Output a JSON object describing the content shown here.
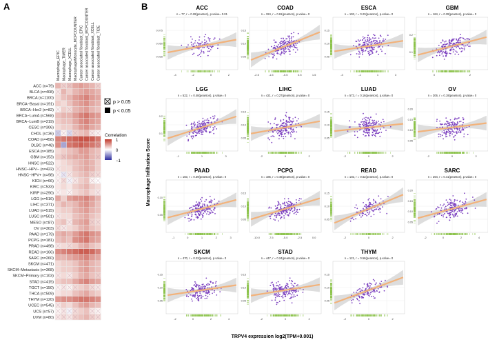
{
  "panel_a_label": "A",
  "panel_b_label": "B",
  "chart_data": [
    {
      "type": "heatmap",
      "panel": "A",
      "columns": [
        "Macrophage_EPIC",
        "Macrophage_TIMER",
        "Macrophage_XCELL",
        "Macrophage/Monocyte_MCPCOUNTER",
        "Cancer associated fibroblast_EPIC",
        "Cancer associated fibroblast_MCPCOUNTER",
        "Cancer associated fibroblast_XCELL",
        "Cancer associated fibroblast_TIDE"
      ],
      "rows": [
        "ACC (n=79)",
        "BLCA (n=408)",
        "BRCA (n=1100)",
        "BRCA−Basal (n=191)",
        "BRCA−Her2 (n=82)",
        "BRCA−LumA (n=568)",
        "BRCA−LumB (n=219)",
        "CESC (n=306)",
        "CHOL (n=36)",
        "COAD (n=458)",
        "DLBC (n=48)",
        "ESCA (n=185)",
        "GBM (n=153)",
        "HNSC (n=522)",
        "HNSC−HPV− (n=422)",
        "HNSC−HPV+ (n=98)",
        "KICH (n=66)",
        "KIRC (n=533)",
        "KIRP (n=290)",
        "LGG (n=516)",
        "LIHC (n=371)",
        "LUAD (n=515)",
        "LUSC (n=501)",
        "MESO (n=87)",
        "OV (n=303)",
        "PAAD (n=179)",
        "PCPG (n=181)",
        "PRAD (n=498)",
        "READ (n=166)",
        "SARC (n=260)",
        "SKCM (n=471)",
        "SKCM−Metastasis (n=368)",
        "SKCM−Primary (n=103)",
        "STAD (n=415)",
        "TGCT (n=150)",
        "THCA (n=509)",
        "THYM (n=120)",
        "UCEC (n=545)",
        "UCS (n=57)",
        "UVM (n=80)"
      ],
      "legend_p_high": "p > 0.05",
      "legend_p_low": "p < 0.05",
      "legend_title": "Correlation",
      "legend_ticks": [
        "1",
        "0",
        "−1"
      ],
      "scale_colors": {
        "high": "#c0392b",
        "mid": "#ffffff",
        "low": "#2c2c9e"
      },
      "values": [
        [
          0.3,
          0.2,
          0.25,
          0.35,
          0.4,
          0.35,
          0.3,
          0.2
        ],
        [
          0.1,
          0.3,
          0.2,
          0.3,
          0.35,
          0.4,
          0.35,
          0.3
        ],
        [
          0.15,
          0.25,
          0.3,
          0.4,
          0.45,
          0.5,
          0.4,
          0.35
        ],
        [
          0.2,
          0.15,
          0.25,
          0.35,
          0.4,
          0.45,
          0.35,
          0.3
        ],
        [
          0.05,
          0.2,
          0.15,
          0.3,
          0.35,
          0.4,
          0.3,
          0.25
        ],
        [
          0.25,
          0.3,
          0.3,
          0.4,
          0.5,
          0.55,
          0.45,
          0.4
        ],
        [
          0.2,
          0.25,
          0.25,
          0.35,
          0.45,
          0.5,
          0.4,
          0.35
        ],
        [
          0.15,
          0.2,
          0.2,
          0.3,
          0.4,
          0.45,
          0.35,
          0.3
        ],
        [
          -0.2,
          0.05,
          -0.15,
          0.2,
          0.25,
          0.3,
          0.1,
          0.05
        ],
        [
          0.5,
          0.55,
          0.6,
          0.65,
          0.7,
          0.7,
          0.65,
          0.55
        ],
        [
          0.45,
          -0.35,
          0.55,
          0.6,
          0.65,
          0.6,
          0.55,
          0.5
        ],
        [
          0.15,
          0.2,
          0.25,
          0.3,
          0.4,
          0.4,
          0.3,
          0.25
        ],
        [
          0.2,
          0.25,
          0.3,
          0.35,
          0.35,
          0.4,
          0.3,
          0.25
        ],
        [
          0.1,
          0.15,
          0.2,
          0.25,
          0.3,
          0.35,
          0.3,
          0.2
        ],
        [
          0.1,
          0.15,
          0.15,
          0.25,
          0.3,
          0.35,
          0.3,
          0.2
        ],
        [
          0.05,
          -0.1,
          0.1,
          0.2,
          0.25,
          0.3,
          0.2,
          0.15
        ],
        [
          0.05,
          0.15,
          -0.05,
          0.1,
          0.2,
          0.25,
          0.05,
          0.0
        ],
        [
          0.1,
          0.15,
          0.1,
          0.2,
          0.25,
          0.3,
          0.2,
          0.15
        ],
        [
          0.05,
          0.1,
          0.05,
          0.15,
          0.2,
          0.25,
          0.15,
          0.1
        ],
        [
          0.35,
          0.2,
          0.4,
          0.45,
          0.45,
          0.5,
          0.4,
          0.3
        ],
        [
          0.2,
          0.3,
          0.25,
          0.3,
          0.4,
          0.45,
          0.35,
          0.25
        ],
        [
          0.15,
          0.2,
          0.2,
          0.3,
          0.35,
          0.4,
          0.3,
          0.25
        ],
        [
          0.1,
          0.15,
          0.15,
          0.25,
          0.3,
          0.35,
          0.25,
          0.2
        ],
        [
          0.2,
          0.25,
          0.1,
          0.3,
          0.35,
          0.4,
          0.2,
          0.15
        ],
        [
          0.15,
          0.1,
          0.15,
          0.2,
          0.3,
          0.35,
          0.25,
          0.2
        ],
        [
          0.3,
          0.35,
          0.3,
          0.4,
          0.5,
          0.55,
          0.45,
          0.4
        ],
        [
          0.25,
          0.3,
          0.25,
          0.45,
          0.5,
          0.55,
          0.4,
          0.35
        ],
        [
          0.1,
          0.15,
          0.15,
          0.2,
          0.3,
          0.35,
          0.25,
          0.2
        ],
        [
          0.45,
          0.5,
          0.55,
          0.6,
          0.65,
          0.65,
          0.6,
          0.5
        ],
        [
          0.3,
          0.3,
          0.35,
          0.4,
          0.45,
          0.5,
          0.4,
          0.35
        ],
        [
          0.15,
          0.2,
          0.2,
          0.25,
          0.35,
          0.4,
          0.3,
          0.25
        ],
        [
          0.15,
          0.2,
          0.2,
          0.25,
          0.35,
          0.4,
          0.3,
          0.25
        ],
        [
          0.1,
          0.15,
          0.1,
          0.2,
          0.3,
          0.35,
          0.25,
          0.2
        ],
        [
          0.2,
          0.25,
          0.25,
          0.35,
          0.45,
          0.5,
          0.4,
          0.35
        ],
        [
          0.05,
          0.1,
          0.05,
          0.15,
          0.2,
          0.25,
          0.15,
          0.1
        ],
        [
          0.1,
          0.15,
          0.15,
          0.25,
          0.3,
          0.35,
          0.25,
          0.2
        ],
        [
          0.4,
          0.45,
          0.45,
          0.5,
          0.55,
          0.55,
          0.5,
          0.45
        ],
        [
          0.1,
          0.2,
          0.15,
          0.25,
          0.35,
          0.4,
          0.3,
          0.25
        ],
        [
          0.05,
          0.1,
          -0.05,
          0.15,
          0.2,
          0.25,
          0.1,
          0.05
        ],
        [
          0.1,
          0.15,
          0.1,
          0.2,
          0.25,
          0.3,
          0.2,
          0.15
        ]
      ],
      "not_significant": [
        [
          0,
          1
        ],
        [
          0,
          2
        ],
        [
          0,
          7
        ],
        [
          1,
          0
        ],
        [
          4,
          0
        ],
        [
          4,
          2
        ],
        [
          8,
          0
        ],
        [
          8,
          1
        ],
        [
          8,
          2
        ],
        [
          8,
          3
        ],
        [
          8,
          6
        ],
        [
          8,
          7
        ],
        [
          10,
          1
        ],
        [
          10,
          7
        ],
        [
          12,
          1
        ],
        [
          12,
          7
        ],
        [
          14,
          0
        ],
        [
          15,
          0
        ],
        [
          15,
          1
        ],
        [
          15,
          2
        ],
        [
          15,
          6
        ],
        [
          15,
          7
        ],
        [
          16,
          0
        ],
        [
          16,
          1
        ],
        [
          16,
          2
        ],
        [
          16,
          3
        ],
        [
          16,
          6
        ],
        [
          16,
          7
        ],
        [
          18,
          0
        ],
        [
          18,
          2
        ],
        [
          18,
          7
        ],
        [
          22,
          0
        ],
        [
          23,
          2
        ],
        [
          23,
          6
        ],
        [
          23,
          7
        ],
        [
          24,
          0
        ],
        [
          24,
          1
        ],
        [
          27,
          0
        ],
        [
          27,
          2
        ],
        [
          32,
          0
        ],
        [
          32,
          2
        ],
        [
          32,
          7
        ],
        [
          34,
          0
        ],
        [
          34,
          1
        ],
        [
          34,
          2
        ],
        [
          34,
          3
        ],
        [
          34,
          6
        ],
        [
          34,
          7
        ],
        [
          37,
          0
        ],
        [
          38,
          0
        ],
        [
          38,
          1
        ],
        [
          38,
          2
        ],
        [
          38,
          3
        ],
        [
          38,
          6
        ],
        [
          38,
          7
        ],
        [
          39,
          0
        ],
        [
          39,
          1
        ],
        [
          39,
          2
        ],
        [
          39,
          3
        ],
        [
          39,
          6
        ],
        [
          39,
          7
        ]
      ]
    },
    {
      "type": "scatter",
      "panel": "B",
      "ylabel": "Macrophage Infiltration Score",
      "xlabel": "TRPV4 expression log2(TPM+0.001)",
      "colors": {
        "point": "#7b3fbf",
        "line": "#f2b27a",
        "band": "#cfcfcf",
        "rug": "#8bc34a"
      },
      "panels": [
        {
          "title": "ACC",
          "stats": "n = 77, r = 0.28(pearson), p.value= 0.01",
          "n": 77,
          "r": 0.28,
          "xlim": [
            -4,
            4
          ],
          "ylim": [
            0,
            0.1
          ],
          "xticks": [
            "-4",
            "-2",
            "0",
            "2"
          ],
          "yticks": [
            "0.025",
            "0.050",
            "0.075"
          ]
        },
        {
          "title": "COAD",
          "stats": "n = 324, r = 0.61(pearson), p.value= 0",
          "n": 324,
          "r": 0.61,
          "xlim": [
            -3,
            2
          ],
          "ylim": [
            0,
            0.2
          ],
          "xticks": [
            "-2.5",
            "-1.5",
            "-0.5",
            "0.5",
            "1.5"
          ],
          "yticks": [
            "0.05",
            "0.10",
            "0.15"
          ]
        },
        {
          "title": "ESCA",
          "stats": "n = 193, r = 0.23(pearson), p.value= 0",
          "n": 193,
          "r": 0.23,
          "xlim": [
            -4,
            4
          ],
          "ylim": [
            0,
            0.2
          ],
          "xticks": [
            "-3",
            "-1",
            "1",
            "3"
          ],
          "yticks": [
            "0.05",
            "0.10",
            "0.15"
          ]
        },
        {
          "title": "GBM",
          "stats": "n = 164, r = 0.39(pearson), p.value= 0",
          "n": 164,
          "r": 0.39,
          "xlim": [
            -2,
            4
          ],
          "ylim": [
            0,
            0.3
          ],
          "xticks": [
            "0",
            "2"
          ],
          "yticks": [
            "0.1",
            "0.2"
          ]
        },
        {
          "title": "LGG",
          "stats": "n = 522, r = 0.48(pearson), p.value= 0",
          "n": 522,
          "r": 0.48,
          "xlim": [
            -3,
            4
          ],
          "ylim": [
            0,
            0.3
          ],
          "xticks": [
            "-1",
            "1",
            "3"
          ],
          "yticks": [
            "0.1",
            "0.2"
          ]
        },
        {
          "title": "LIHC",
          "stats": "n = 421, r = 0.27(pearson), p.value= 0",
          "n": 421,
          "r": 0.27,
          "xlim": [
            -3,
            3
          ],
          "ylim": [
            0,
            0.2
          ],
          "xticks": [
            "-2",
            "0",
            "2"
          ],
          "yticks": [
            "0.05",
            "0.10",
            "0.15"
          ]
        },
        {
          "title": "LUAD",
          "stats": "n = 573, r = 0.16(pearson), p.value= 0",
          "n": 573,
          "r": 0.16,
          "xlim": [
            -3,
            4
          ],
          "ylim": [
            0,
            0.2
          ],
          "xticks": [
            "-2",
            "0",
            "2"
          ],
          "yticks": [
            "0.05",
            "0.10",
            "0.15"
          ]
        },
        {
          "title": "OV",
          "stats": "n = 306, r = 0.19(pearson), p.value= 0",
          "n": 306,
          "r": 0.19,
          "xlim": [
            -4,
            4
          ],
          "ylim": [
            0,
            0.25
          ],
          "xticks": [
            "-2",
            "0",
            "2"
          ],
          "yticks": [
            "0.05",
            "0.10",
            "0.15",
            "0.20"
          ]
        },
        {
          "title": "PAAD",
          "stats": "n = 183, r = 0.39(pearson), p.value= 0",
          "n": 183,
          "r": 0.39,
          "xlim": [
            -2,
            4
          ],
          "ylim": [
            0,
            0.15
          ],
          "xticks": [
            "-1",
            "0",
            "1",
            "2",
            "3"
          ],
          "yticks": [
            "0.05",
            "0.10"
          ]
        },
        {
          "title": "PCPG",
          "stats": "n = 185, r = 0.46(pearson), p.value= 0",
          "n": 185,
          "r": 0.46,
          "xlim": [
            -10,
            5
          ],
          "ylim": [
            0,
            0.2
          ],
          "xticks": [
            "-10.0",
            "-7.5",
            "-5.0",
            "-2.5",
            "0.0"
          ],
          "yticks": [
            "0.05",
            "0.10",
            "0.15"
          ]
        },
        {
          "title": "READ",
          "stats": "n = 102, r = 0.62(pearson), p.value= 0",
          "n": 102,
          "r": 0.62,
          "xlim": [
            -3,
            3
          ],
          "ylim": [
            0,
            0.2
          ],
          "xticks": [
            "-2",
            "0",
            "2"
          ],
          "yticks": [
            "0.05",
            "0.10",
            "0.15"
          ]
        },
        {
          "title": "SARC",
          "stats": "n = 264, r = 0.41(pearson), p.value= 0",
          "n": 264,
          "r": 0.41,
          "xlim": [
            -3,
            5
          ],
          "ylim": [
            0,
            0.25
          ],
          "xticks": [
            "-2",
            "0",
            "2",
            "4"
          ],
          "yticks": [
            "0.05",
            "0.10",
            "0.15",
            "0.20"
          ]
        },
        {
          "title": "SKCM",
          "stats": "n = 470, r = 0.22(pearson), p.value= 0",
          "n": 470,
          "r": 0.22,
          "xlim": [
            -3,
            6
          ],
          "ylim": [
            0,
            0.2
          ],
          "xticks": [
            "-2",
            "0",
            "2",
            "4"
          ],
          "yticks": [
            "0.05",
            "0.10",
            "0.15"
          ]
        },
        {
          "title": "STAD",
          "stats": "n = 447, r = 0.24(pearson), p.value= 0",
          "n": 447,
          "r": 0.24,
          "xlim": [
            -3,
            3
          ],
          "ylim": [
            0,
            0.2
          ],
          "xticks": [
            "-2",
            "0",
            "2"
          ],
          "yticks": [
            "0.05",
            "0.10",
            "0.15"
          ]
        },
        {
          "title": "THYM",
          "stats": "n = 121, r = 0.56(pearson), p.value= 0",
          "n": 121,
          "r": 0.56,
          "xlim": [
            -3,
            4
          ],
          "ylim": [
            0,
            0.2
          ],
          "xticks": [
            "-2",
            "0",
            "2"
          ],
          "yticks": [
            "0.05",
            "0.10",
            "0.15"
          ]
        }
      ]
    }
  ]
}
